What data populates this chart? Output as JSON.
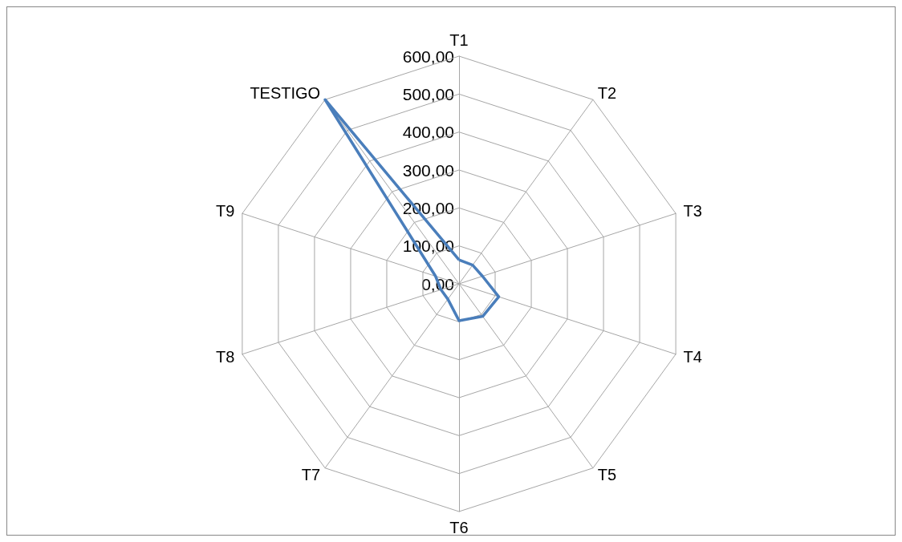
{
  "chart_data": {
    "type": "radar",
    "categories": [
      "T1",
      "T2",
      "T3",
      "T4",
      "T5",
      "T6",
      "T7",
      "T8",
      "T9",
      "TESTIGO"
    ],
    "series": [
      {
        "color": "#4a7ebb",
        "values": [
          63,
          61,
          65,
          110,
          106,
          97,
          50,
          50,
          65,
          600
        ]
      }
    ],
    "ylim": [
      0,
      600
    ],
    "yticks": [
      {
        "value": 0,
        "label": "0,00"
      },
      {
        "value": 100,
        "label": "100,00"
      },
      {
        "value": 200,
        "label": "200,00"
      },
      {
        "value": 300,
        "label": "300,00"
      },
      {
        "value": 400,
        "label": "400,00"
      },
      {
        "value": 500,
        "label": "500,00"
      },
      {
        "value": 600,
        "label": "600,00"
      }
    ],
    "marker": "none",
    "line_style": "solid"
  }
}
